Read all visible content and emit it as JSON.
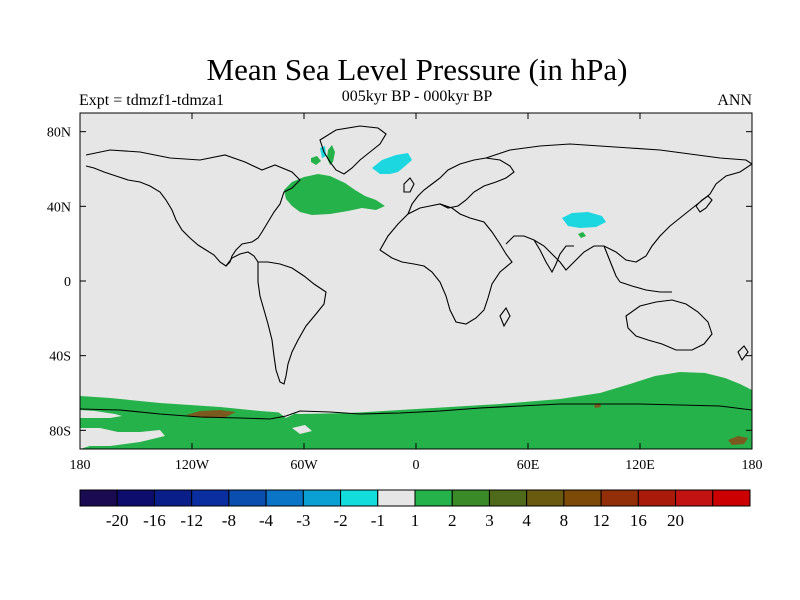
{
  "title": "Mean Sea Level Pressure (in hPa)",
  "subtitle": "005kyr BP - 000kyr BP",
  "experiment": "Expt = tdmzf1-tdmza1",
  "season": "ANN",
  "colors": {
    "background_field": "#e6e6e6",
    "positive_1_2": "#26b24a",
    "positive_8_12": "#7a5a1e",
    "negative_minus2_minus1": "#1cd6e0",
    "coast": "#000000"
  },
  "chart_data": {
    "type": "heatmap",
    "title": "Mean Sea Level Pressure (in hPa)",
    "subtitle": "005kyr BP - 000kyr BP",
    "projection": "cylindrical equidistant",
    "xlim": [
      -180,
      180
    ],
    "ylim": [
      -90,
      90
    ],
    "x_ticks": [
      {
        "value": -180,
        "label": "180"
      },
      {
        "value": -120,
        "label": "120W"
      },
      {
        "value": -60,
        "label": "60W"
      },
      {
        "value": 0,
        "label": "0"
      },
      {
        "value": 60,
        "label": "60E"
      },
      {
        "value": 120,
        "label": "120E"
      },
      {
        "value": 180,
        "label": "180"
      }
    ],
    "y_ticks": [
      {
        "value": 80,
        "label": "80N"
      },
      {
        "value": 40,
        "label": "40N"
      },
      {
        "value": 0,
        "label": "0"
      },
      {
        "value": -40,
        "label": "40S"
      },
      {
        "value": -80,
        "label": "80S"
      }
    ],
    "colorbar": {
      "colors": [
        "#1a0a52",
        "#0d0d6e",
        "#0a1e8a",
        "#0a2ea0",
        "#0a4eb0",
        "#0a74c6",
        "#0aa0d4",
        "#12dcdc",
        "#e6e6e6",
        "#26b24a",
        "#3a8a28",
        "#4f6a1a",
        "#6a5a10",
        "#7e4a08",
        "#922e08",
        "#aa1a0a",
        "#c21212",
        "#cc0000"
      ],
      "labels": [
        "-20",
        "-16",
        "-12",
        "-8",
        "-4",
        "-3",
        "-2",
        "-1",
        "1",
        "2",
        "3",
        "4",
        "8",
        "12",
        "16",
        "20"
      ]
    },
    "regions": [
      {
        "name": "North Atlantic positive anomaly",
        "range": "1 to 2",
        "color": "#26b24a",
        "lon_center": -45,
        "lat_center": 48
      },
      {
        "name": "Southern Ocean positive belt",
        "range": "1 to 2",
        "color": "#26b24a",
        "lon_center": 0,
        "lat_center": -70
      },
      {
        "name": "Greenland west coast positive anomaly",
        "range": "1 to 2",
        "color": "#26b24a",
        "lon_center": -52,
        "lat_center": 70
      },
      {
        "name": "Greenland Sea negative anomaly",
        "range": "-2 to -1",
        "color": "#1cd6e0",
        "lon_center": -10,
        "lat_center": 72
      },
      {
        "name": "Tibetan Plateau negative anomaly",
        "range": "-2 to -1",
        "color": "#1cd6e0",
        "lon_center": 88,
        "lat_center": 33
      },
      {
        "name": "Davis Strait negative anomaly",
        "range": "-2 to -1",
        "color": "#1cd6e0",
        "lon_center": -46,
        "lat_center": 70
      },
      {
        "name": "West Antarctic coastal anomaly",
        "range": "8 to 12",
        "color": "#7a5a1e",
        "lon_center": -118,
        "lat_center": -72
      },
      {
        "name": "Ross Sea anomaly",
        "range": "8 to 12",
        "color": "#7a5a1e",
        "lon_center": 170,
        "lat_center": -85
      }
    ]
  }
}
